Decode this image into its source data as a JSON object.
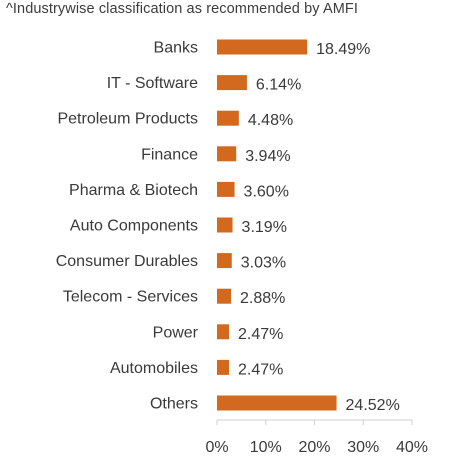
{
  "chart_data": {
    "type": "bar",
    "orientation": "horizontal",
    "subtitle": "^Industrywise classification as recommended by AMFI",
    "categories": [
      "Banks",
      "IT - Software",
      "Petroleum Products",
      "Finance",
      "Pharma & Biotech",
      "Auto Components",
      "Consumer Durables",
      "Telecom - Services",
      "Power",
      "Automobiles",
      "Others"
    ],
    "values": [
      18.49,
      6.14,
      4.48,
      3.94,
      3.6,
      3.19,
      3.03,
      2.88,
      2.47,
      2.47,
      24.52
    ],
    "value_labels": [
      "18.49%",
      "6.14%",
      "4.48%",
      "3.94%",
      "3.60%",
      "3.19%",
      "3.03%",
      "2.88%",
      "2.47%",
      "2.47%",
      "24.52%"
    ],
    "xlim": [
      0,
      40
    ],
    "x_ticks": [
      0,
      10,
      20,
      30,
      40
    ],
    "x_tick_labels": [
      "0%",
      "10%",
      "20%",
      "30%",
      "40%"
    ],
    "grid": false,
    "bar_color": "#D2691E"
  }
}
